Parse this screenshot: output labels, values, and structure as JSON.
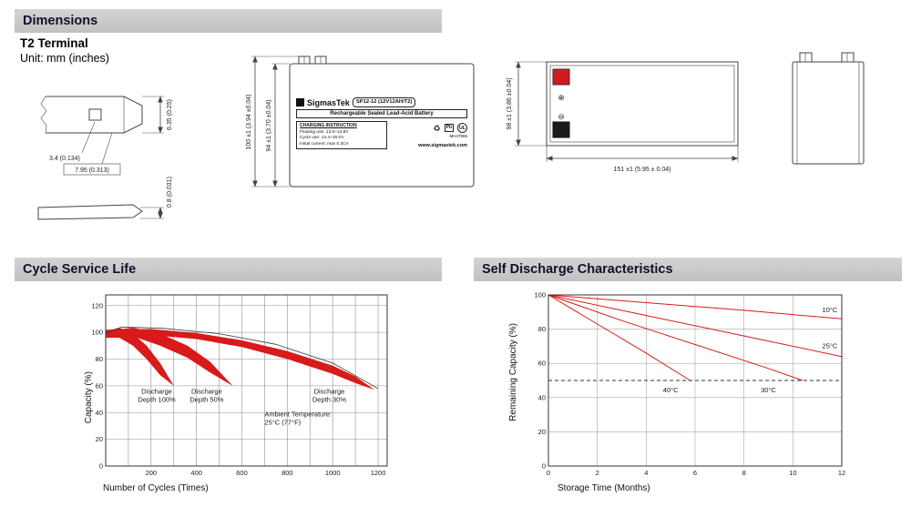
{
  "sections": {
    "dimensions": "Dimensions",
    "cycle_life": "Cycle Service Life",
    "self_discharge": "Self Discharge Characteristics"
  },
  "dimensions_block": {
    "terminal_type": "T2 Terminal",
    "unit_note": "Unit: mm (inches)",
    "terminal_detail": {
      "height": "6.35 (0.25)",
      "hole": "3.4 (0.134)",
      "width": "7.95 (0.313)",
      "thickness": "0.8 (0.031)"
    },
    "front_view": {
      "overall_height": "100 ±1 (3.94 ±0.04)",
      "case_height": "94 ±1 (3.70 ±0.04)",
      "label": {
        "brand": "SigmasTek",
        "model": "SP12-12 (12V12AH/T2)",
        "battery_type": "Rechargeable Sealed Lead-Acid Battery",
        "charging_title": "CHARGING INSTRUCTION",
        "charging_lines": [
          "Floating use: 13.5~13.8V",
          "Cycle use: 14.4~15.0V",
          "Initial current: max 0.3CA"
        ],
        "pb": "Pb",
        "ul": "UL",
        "ul_code": "MH47855",
        "website": "www.sigmastek.com"
      }
    },
    "top_view": {
      "width": "98 ±1 (3.86 ±0.04)",
      "length": "151 ±1 (5.95 ± 0.04)",
      "positive": "⊕",
      "negative": "⊖"
    }
  },
  "chart_data": [
    {
      "type": "area",
      "title": "Cycle Service Life",
      "xlabel": "Number of Cycles (Times)",
      "ylabel": "Capacity (%)",
      "xlim": [
        0,
        1240
      ],
      "ylim": [
        0,
        128
      ],
      "xticks": [
        200,
        400,
        600,
        800,
        1000,
        1200
      ],
      "yticks": [
        0,
        20,
        40,
        60,
        80,
        100,
        120
      ],
      "xgrid": [
        100,
        200,
        300,
        400,
        500,
        600,
        700,
        800,
        900,
        1000,
        1100,
        1200
      ],
      "ygrid": [
        20,
        40,
        60,
        80,
        100,
        120
      ],
      "grid_color": "#8f8f8f",
      "accent_color": "#d81a1a",
      "legend_position": "none",
      "bands": [
        {
          "name": "Discharge Depth 100%",
          "upper": [
            [
              0,
              101
            ],
            [
              60,
              103.5
            ],
            [
              120,
              99
            ],
            [
              180,
              90
            ],
            [
              240,
              77
            ],
            [
              300,
              60
            ]
          ],
          "lower": [
            [
              0,
              96
            ],
            [
              60,
              96
            ],
            [
              120,
              90
            ],
            [
              180,
              80
            ],
            [
              240,
              68
            ],
            [
              300,
              60
            ]
          ]
        },
        {
          "name": "Discharge Depth 50%",
          "upper": [
            [
              0,
              101
            ],
            [
              120,
              103.5
            ],
            [
              240,
              99
            ],
            [
              360,
              90
            ],
            [
              460,
              78
            ],
            [
              560,
              60
            ]
          ],
          "lower": [
            [
              0,
              96
            ],
            [
              120,
              97
            ],
            [
              240,
              90
            ],
            [
              360,
              81
            ],
            [
              460,
              70
            ],
            [
              560,
              60
            ]
          ]
        },
        {
          "name": "Discharge Depth 30%",
          "upper": [
            [
              0,
              102
            ],
            [
              200,
              102.5
            ],
            [
              400,
              99.5
            ],
            [
              600,
              94
            ],
            [
              800,
              86
            ],
            [
              1000,
              75
            ],
            [
              1100,
              67
            ],
            [
              1185,
              57
            ]
          ],
          "lower": [
            [
              0,
              97
            ],
            [
              200,
              98
            ],
            [
              400,
              95
            ],
            [
              600,
              89
            ],
            [
              800,
              80
            ],
            [
              1000,
              69
            ],
            [
              1100,
              62
            ],
            [
              1185,
              57
            ]
          ]
        }
      ],
      "lines": [
        {
          "name": "capacity envelope",
          "color": "#3a3a3a",
          "width": 0.8,
          "points": [
            [
              0,
              99
            ],
            [
              70,
              104
            ],
            [
              250,
              103
            ],
            [
              500,
              99
            ],
            [
              750,
              91
            ],
            [
              1000,
              77
            ],
            [
              1200,
              58
            ]
          ]
        }
      ],
      "annotations": [
        {
          "text": "Discharge\nDepth 100%",
          "x": 225,
          "y": 54
        },
        {
          "text": "Discharge\nDepth 50%",
          "x": 445,
          "y": 54
        },
        {
          "text": "Discharge\nDepth 30%",
          "x": 985,
          "y": 54
        },
        {
          "text": "Ambient Temperature:\n25°C (77°F)",
          "x": 700,
          "y": 37,
          "anchor": "start"
        }
      ]
    },
    {
      "type": "line",
      "title": "Self Discharge Characteristics",
      "xlabel": "Storage Time (Months)",
      "ylabel": "Remaining Capacity (%)",
      "xlim": [
        0,
        12
      ],
      "ylim": [
        0,
        100
      ],
      "xticks": [
        0,
        2,
        4,
        6,
        8,
        10,
        12
      ],
      "yticks": [
        0,
        20,
        40,
        60,
        80,
        100
      ],
      "xgrid": [
        2,
        4,
        6,
        8,
        10
      ],
      "ygrid": [
        20,
        40,
        60,
        80
      ],
      "grid_color": "#a8a8a8",
      "accent_color": "#d81a1a",
      "legend_position": "inline-labels",
      "lines": [
        {
          "name": "10°C",
          "color": "#d81a1a",
          "width": 1,
          "points": [
            [
              0,
              100
            ],
            [
              4,
              95.5
            ],
            [
              8,
              91
            ],
            [
              12,
              86
            ]
          ]
        },
        {
          "name": "25°C",
          "color": "#d81a1a",
          "width": 1,
          "points": [
            [
              0,
              100
            ],
            [
              4,
              88
            ],
            [
              8,
              76
            ],
            [
              12,
              64
            ]
          ]
        },
        {
          "name": "30°C",
          "color": "#d81a1a",
          "width": 1,
          "points": [
            [
              0,
              100
            ],
            [
              3,
              85
            ],
            [
              6,
              71
            ],
            [
              9,
              57
            ],
            [
              10.4,
              50
            ]
          ]
        },
        {
          "name": "40°C",
          "color": "#d81a1a",
          "width": 1,
          "points": [
            [
              0,
              100
            ],
            [
              2,
              83
            ],
            [
              4,
              66
            ],
            [
              5.8,
              50
            ]
          ]
        },
        {
          "name": "50% reference",
          "color": "#333333",
          "width": 0.9,
          "dash": "4 3",
          "points": [
            [
              0,
              50
            ],
            [
              12,
              50
            ]
          ]
        }
      ],
      "annotations": [
        {
          "text": "10°C",
          "x": 11.2,
          "y": 90,
          "anchor": "start"
        },
        {
          "text": "25°C",
          "x": 11.2,
          "y": 69,
          "anchor": "start"
        },
        {
          "text": "30°C",
          "x": 9.0,
          "y": 43
        },
        {
          "text": "40°C",
          "x": 5.0,
          "y": 43
        }
      ]
    }
  ]
}
